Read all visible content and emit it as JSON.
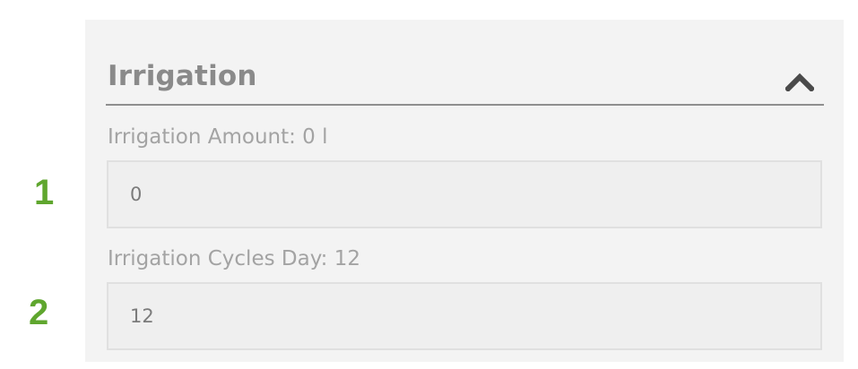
{
  "section": {
    "title": "Irrigation",
    "collapse_icon": "chevron-up-icon"
  },
  "fields": [
    {
      "label": "Irrigation Amount: 0 l",
      "value": "0"
    },
    {
      "label": "Irrigation Cycles Day: 12",
      "value": "12"
    }
  ],
  "markers": [
    "1",
    "2"
  ],
  "colors": {
    "panel_bg": "#f3f3f3",
    "input_bg": "#efefef",
    "marker": "#5fa62e",
    "title": "#8a8a8a"
  }
}
